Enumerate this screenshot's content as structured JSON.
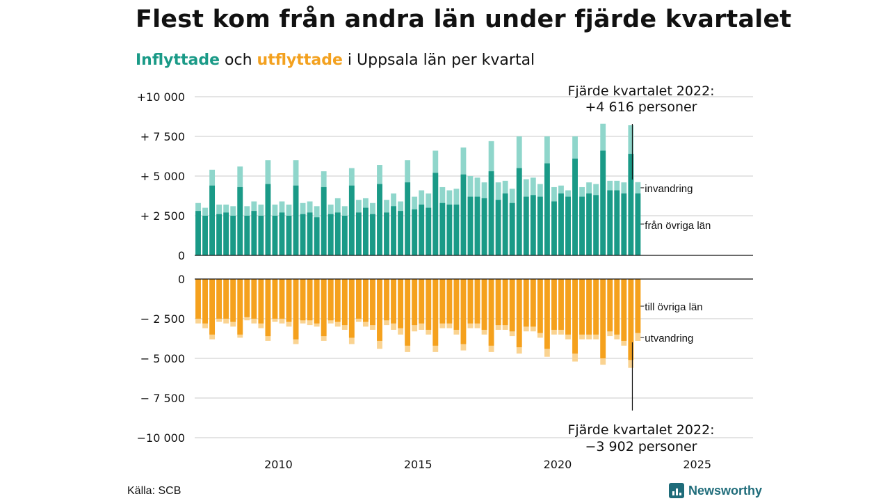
{
  "title": "Flest kom från andra län under fjärde kvartalet",
  "subtitle": {
    "in_word": "Inflyttade",
    "and_word": " och ",
    "out_word": "utflyttade",
    "rest": " i Uppsala län per kvartal"
  },
  "source": "Källa: SCB",
  "brand": "Newsworthy",
  "colors": {
    "in_dark": "#1a9a87",
    "in_light": "#8fd6cb",
    "out_dark": "#f5a11d",
    "out_light": "#fad391",
    "grid": "#dcdcdc",
    "axis": "#111111"
  },
  "chart_data": {
    "type": "bar",
    "x_start": 2007.0,
    "x_step": 0.25,
    "xlim": [
      2007,
      2027
    ],
    "x_ticks": [
      2010,
      2015,
      2020,
      2025
    ],
    "top_panel": {
      "ylim": [
        0,
        10000
      ],
      "y_ticks": [
        {
          "value": 0,
          "label": "0"
        },
        {
          "value": 2500,
          "label": "+ 2 500"
        },
        {
          "value": 5000,
          "label": "+ 5 000"
        },
        {
          "value": 7500,
          "label": "+ 7 500"
        },
        {
          "value": 10000,
          "label": "+10 000"
        }
      ],
      "series": [
        {
          "name": "från övriga län",
          "values": [
            2800,
            2500,
            4400,
            2600,
            2700,
            2500,
            4300,
            2500,
            2800,
            2500,
            4500,
            2500,
            2700,
            2500,
            4400,
            2600,
            2700,
            2400,
            4300,
            2600,
            2700,
            2500,
            4400,
            2700,
            3000,
            2600,
            4500,
            2700,
            3100,
            2800,
            4600,
            2900,
            3200,
            3000,
            5200,
            3300,
            3200,
            3200,
            5100,
            3700,
            3700,
            3600,
            5300,
            3500,
            3900,
            3300,
            5500,
            3700,
            3800,
            3700,
            5800,
            3400,
            3900,
            3700,
            6100,
            3700,
            3900,
            3800,
            6600,
            4100,
            4100,
            3900,
            6400,
            3902
          ]
        },
        {
          "name": "invandring",
          "values": [
            3300,
            3000,
            5400,
            3200,
            3200,
            3100,
            5600,
            3100,
            3400,
            3200,
            6000,
            3200,
            3400,
            3200,
            6000,
            3300,
            3400,
            3100,
            5300,
            3200,
            3600,
            3100,
            5500,
            3500,
            3600,
            3300,
            5700,
            3500,
            3900,
            3400,
            6000,
            3700,
            4100,
            3900,
            6600,
            4300,
            4100,
            4200,
            6800,
            5000,
            4900,
            4600,
            7200,
            4600,
            4700,
            4200,
            7500,
            4800,
            4900,
            4500,
            7500,
            4300,
            4400,
            4100,
            7500,
            4300,
            4600,
            4500,
            8300,
            4700,
            4700,
            4600,
            8200,
            4616
          ]
        }
      ],
      "labels": [
        "invandring",
        "från övriga län"
      ]
    },
    "bottom_panel": {
      "ylim": [
        -10000,
        0
      ],
      "y_ticks": [
        {
          "value": 0,
          "label": "0"
        },
        {
          "value": -2500,
          "label": "− 2 500"
        },
        {
          "value": -5000,
          "label": "− 5 000"
        },
        {
          "value": -7500,
          "label": "− 7 500"
        },
        {
          "value": -10000,
          "label": "−10 000"
        }
      ],
      "series": [
        {
          "name": "till övriga län",
          "values": [
            -2500,
            -2800,
            -3500,
            -2500,
            -2500,
            -2700,
            -3500,
            -2400,
            -2500,
            -2800,
            -3600,
            -2500,
            -2500,
            -2700,
            -3800,
            -2600,
            -2600,
            -2800,
            -3600,
            -2600,
            -2700,
            -2900,
            -3700,
            -2500,
            -2700,
            -2900,
            -3900,
            -2600,
            -2800,
            -3100,
            -4200,
            -2900,
            -2800,
            -3200,
            -4200,
            -2800,
            -2800,
            -3200,
            -4100,
            -2800,
            -2800,
            -3200,
            -4200,
            -2900,
            -2900,
            -3300,
            -4300,
            -3000,
            -3000,
            -3400,
            -4400,
            -3200,
            -3200,
            -3500,
            -4700,
            -3500,
            -3500,
            -3500,
            -5000,
            -3300,
            -3500,
            -3900,
            -5100,
            -3400
          ]
        },
        {
          "name": "utvandring",
          "values": [
            -2800,
            -3100,
            -3800,
            -2700,
            -2800,
            -3000,
            -3700,
            -2600,
            -2800,
            -3100,
            -3900,
            -2700,
            -2800,
            -3000,
            -4100,
            -2800,
            -2900,
            -3000,
            -3900,
            -2800,
            -3000,
            -3200,
            -4100,
            -2700,
            -3000,
            -3200,
            -4400,
            -2900,
            -3200,
            -3500,
            -4600,
            -3300,
            -3200,
            -3500,
            -4600,
            -3100,
            -3100,
            -3500,
            -4500,
            -3100,
            -3100,
            -3500,
            -4600,
            -3200,
            -3200,
            -3600,
            -4700,
            -3300,
            -3300,
            -3700,
            -4900,
            -3500,
            -3500,
            -3800,
            -5200,
            -3800,
            -3800,
            -3800,
            -5400,
            -3600,
            -3800,
            -4200,
            -5600,
            -3902
          ]
        }
      ],
      "labels": [
        "till övriga län",
        "utvandring"
      ]
    },
    "annotations": {
      "top": {
        "line1": "Fjärde kvartalet 2022:",
        "line2": "+4 616 personer"
      },
      "bottom": {
        "line1": "Fjärde kvartalet 2022:",
        "line2": "−3 902 personer"
      }
    }
  }
}
